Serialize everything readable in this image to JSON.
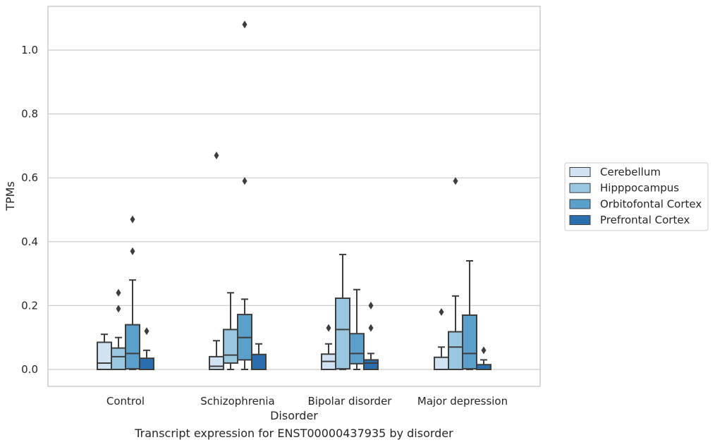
{
  "chart_data": {
    "type": "box",
    "caption": "Transcript expression for ENST00000437935 by disorder",
    "xlabel": "Disorder",
    "ylabel": "TPMs",
    "ylim": [
      -0.05,
      1.135
    ],
    "yticks": [
      0.0,
      0.2,
      0.4,
      0.6,
      0.8,
      1.0
    ],
    "ytick_labels": [
      "0.0",
      "0.2",
      "0.4",
      "0.6",
      "0.8",
      "1.0"
    ],
    "grid": true,
    "legend_position": "right",
    "categories": [
      "Control",
      "Schizophrenia",
      "Bipolar disorder",
      "Major depression"
    ],
    "series": [
      {
        "name": "Cerebellum",
        "color": "#d1e2f2",
        "boxes": [
          {
            "whisker_low": 0.0,
            "q1": 0.0,
            "median": 0.02,
            "q3": 0.085,
            "whisker_high": 0.11,
            "outliers": []
          },
          {
            "whisker_low": 0.0,
            "q1": 0.0,
            "median": 0.01,
            "q3": 0.04,
            "whisker_high": 0.09,
            "outliers": []
          },
          {
            "whisker_low": 0.0,
            "q1": 0.0,
            "median": 0.025,
            "q3": 0.048,
            "whisker_high": 0.08,
            "outliers": [
              0.13
            ]
          },
          {
            "whisker_low": 0.0,
            "q1": 0.0,
            "median": 0.0,
            "q3": 0.038,
            "whisker_high": 0.07,
            "outliers": [
              0.18
            ]
          }
        ]
      },
      {
        "name": "Hipppocampus",
        "color": "#9ac7e0",
        "boxes": [
          {
            "whisker_low": 0.0,
            "q1": 0.0,
            "median": 0.04,
            "q3": 0.067,
            "whisker_high": 0.1,
            "outliers": [
              0.19,
              0.24
            ]
          },
          {
            "whisker_low": 0.0,
            "q1": 0.02,
            "median": 0.045,
            "q3": 0.125,
            "whisker_high": 0.24,
            "outliers": []
          },
          {
            "whisker_low": 0.0,
            "q1": 0.002,
            "median": 0.125,
            "q3": 0.223,
            "whisker_high": 0.36,
            "outliers": []
          },
          {
            "whisker_low": 0.0,
            "q1": 0.0,
            "median": 0.07,
            "q3": 0.118,
            "whisker_high": 0.23,
            "outliers": [
              0.59
            ]
          }
        ]
      },
      {
        "name": "Orbitofontal Cortex",
        "color": "#5b9fcb",
        "boxes": [
          {
            "whisker_low": 0.0,
            "q1": 0.002,
            "median": 0.05,
            "q3": 0.14,
            "whisker_high": 0.28,
            "outliers": [
              0.37,
              0.47
            ]
          },
          {
            "whisker_low": 0.0,
            "q1": 0.03,
            "median": 0.1,
            "q3": 0.172,
            "whisker_high": 0.22,
            "outliers": [
              0.59,
              1.08
            ]
          },
          {
            "whisker_low": 0.0,
            "q1": 0.018,
            "median": 0.05,
            "q3": 0.112,
            "whisker_high": 0.25,
            "outliers": []
          },
          {
            "whisker_low": 0.0,
            "q1": 0.002,
            "median": 0.05,
            "q3": 0.17,
            "whisker_high": 0.34,
            "outliers": []
          }
        ]
      },
      {
        "name": "Prefrontal Cortex",
        "color": "#2a6ead",
        "boxes": [
          {
            "whisker_low": 0.0,
            "q1": 0.0,
            "median": 0.0,
            "q3": 0.035,
            "whisker_high": 0.06,
            "outliers": [
              0.12
            ]
          },
          {
            "whisker_low": 0.0,
            "q1": 0.0,
            "median": 0.0,
            "q3": 0.047,
            "whisker_high": 0.08,
            "outliers": []
          },
          {
            "whisker_low": 0.0,
            "q1": 0.0,
            "median": 0.02,
            "q3": 0.03,
            "whisker_high": 0.05,
            "outliers": [
              0.13,
              0.2
            ]
          },
          {
            "whisker_low": 0.0,
            "q1": 0.0,
            "median": 0.0,
            "q3": 0.015,
            "whisker_high": 0.03,
            "outliers": [
              0.06
            ]
          }
        ]
      }
    ],
    "extra_outliers": [
      {
        "category_index": 1,
        "series_index": 0,
        "value": 0.67
      }
    ]
  }
}
